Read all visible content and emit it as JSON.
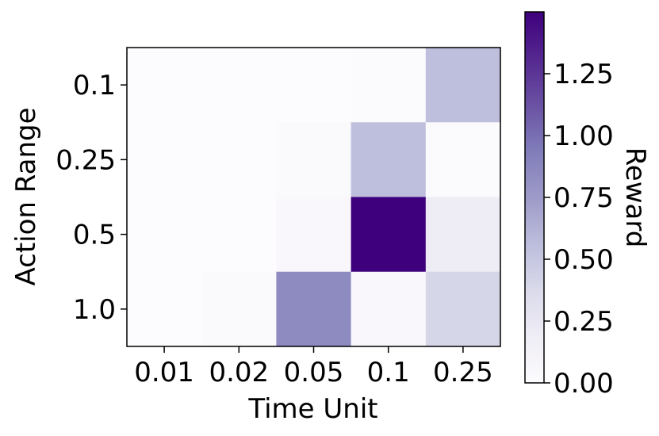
{
  "chart_data": {
    "type": "heatmap",
    "xlabel": "Time Unit",
    "ylabel": "Action Range",
    "x_categories": [
      "0.01",
      "0.02",
      "0.05",
      "0.1",
      "0.25"
    ],
    "y_categories": [
      "0.1",
      "0.25",
      "0.5",
      "1.0"
    ],
    "values": [
      [
        0.0,
        0.0,
        0.0,
        0.01,
        0.55
      ],
      [
        0.0,
        0.0,
        0.03,
        0.55,
        0.02
      ],
      [
        0.0,
        0.0,
        0.05,
        1.5,
        0.2
      ],
      [
        0.0,
        0.03,
        0.85,
        0.05,
        0.4
      ]
    ],
    "colorbar": {
      "label": "Reward",
      "range": [
        0,
        1.5
      ],
      "ticks": [
        0.0,
        0.25,
        0.5,
        0.75,
        1.0,
        1.25
      ],
      "tick_labels": [
        "0.00",
        "0.25",
        "0.50",
        "0.75",
        "1.00",
        "1.25"
      ],
      "colormap": "Purples"
    },
    "colormap_stops": [
      "#fcfbfd",
      "#efedf5",
      "#dadaeb",
      "#bcbddc",
      "#9e9ac8",
      "#807dba",
      "#6a51a3",
      "#54278f",
      "#3f007d"
    ]
  }
}
